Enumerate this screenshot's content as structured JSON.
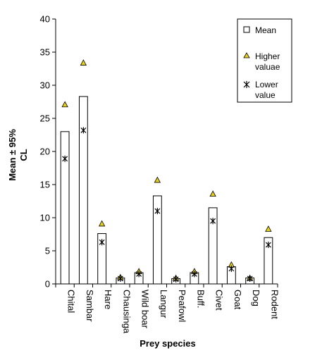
{
  "chart_data": {
    "type": "bar",
    "title": "",
    "xlabel": "Prey species",
    "ylabel_line1": "Mean ± 95%",
    "ylabel_line2": "CL",
    "ylim": [
      0,
      40
    ],
    "yticks": [
      0,
      5,
      10,
      15,
      20,
      25,
      30,
      35,
      40
    ],
    "grid": false,
    "legend_position": "top-right",
    "categories": [
      "Chital",
      "Sambar",
      "Hare",
      "Chausinga",
      "Wild boar",
      "Langur",
      "Peafowl",
      "Buff.",
      "Civet",
      "Goat",
      "Dog",
      "Rodent"
    ],
    "series": [
      {
        "name": "Mean",
        "mark": "bar",
        "color": "#ffffff",
        "values": [
          23.0,
          28.3,
          7.6,
          0.9,
          1.7,
          13.3,
          0.8,
          1.7,
          11.5,
          2.6,
          0.9,
          7.0
        ]
      },
      {
        "name": "Higher valuae",
        "mark": "triangle",
        "color": "#e8d21c",
        "values": [
          27.1,
          33.4,
          9.1,
          1.0,
          1.9,
          15.7,
          0.9,
          1.9,
          13.6,
          2.9,
          0.9,
          8.3
        ]
      },
      {
        "name": "Lower value",
        "mark": "asterisk",
        "color": "#000000",
        "values": [
          18.9,
          23.2,
          6.3,
          0.8,
          1.5,
          11.0,
          0.7,
          1.5,
          9.5,
          2.3,
          0.8,
          5.9
        ]
      }
    ],
    "legend": {
      "entries": [
        {
          "line1": "Mean",
          "line2": ""
        },
        {
          "line1": "Higher",
          "line2": "valuae"
        },
        {
          "line1": "Lower",
          "line2": "value"
        }
      ]
    }
  }
}
